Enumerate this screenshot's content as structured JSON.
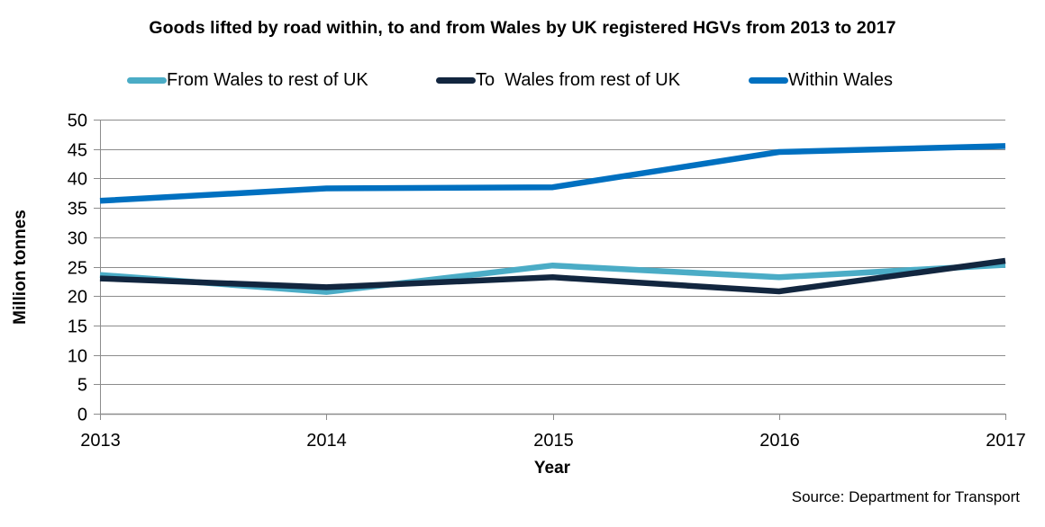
{
  "chart_data": {
    "type": "line",
    "title": "Goods lifted by road within, to and from Wales by UK registered HGVs from 2013 to 2017",
    "xlabel": "Year",
    "ylabel": "Million tonnes",
    "x": [
      "2013",
      "2014",
      "2015",
      "2016",
      "2017"
    ],
    "ylim": [
      0,
      50
    ],
    "yticks": [
      0,
      5,
      10,
      15,
      20,
      25,
      30,
      35,
      40,
      45,
      50
    ],
    "grid": true,
    "legend_position": "top",
    "series": [
      {
        "name": "From Wales to rest of UK",
        "color": "#4bacc6",
        "values": [
          23.6,
          20.7,
          25.2,
          23.2,
          25.3
        ]
      },
      {
        "name": "To  Wales from rest of UK",
        "color": "#12263f",
        "values": [
          23.0,
          21.5,
          23.2,
          20.8,
          26.0
        ]
      },
      {
        "name": "Within Wales",
        "color": "#0070c0",
        "values": [
          36.2,
          38.3,
          38.5,
          44.5,
          45.5
        ]
      }
    ],
    "source": "Source: Department for Transport"
  }
}
